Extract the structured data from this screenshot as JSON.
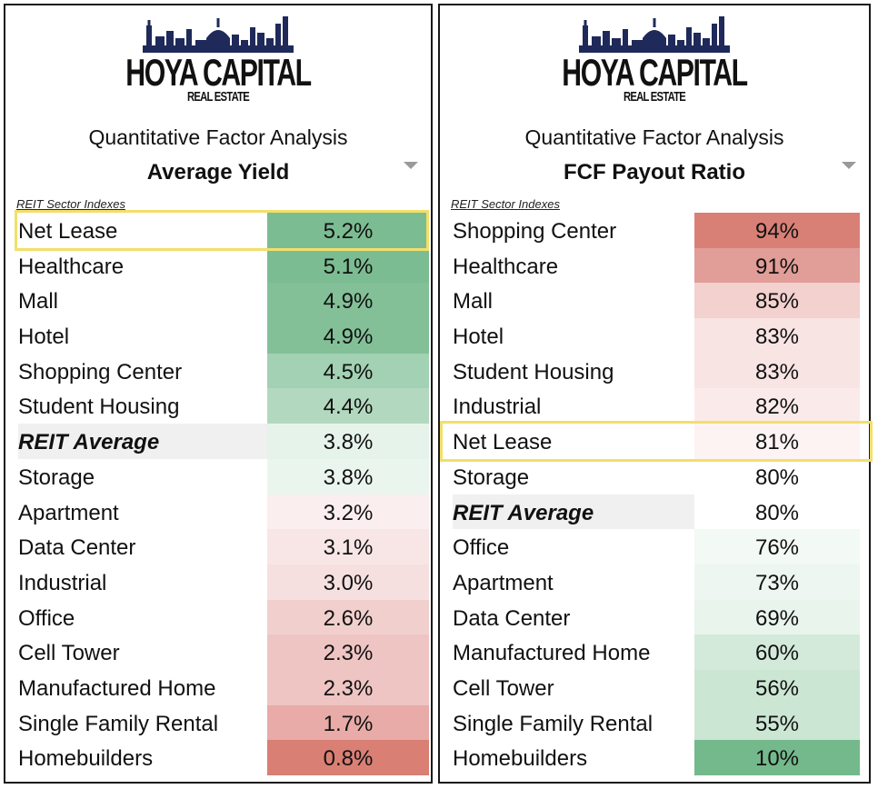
{
  "brand": {
    "name": "HOYA CAPITAL",
    "sub": "REAL ESTATE"
  },
  "chart_data": [
    {
      "type": "table",
      "subtitle": "Quantitative Factor Analysis",
      "title": "Average Yield",
      "caption": "REIT Sector Indexes",
      "rows": [
        {
          "label": "Net Lease",
          "value": "5.2%",
          "num": 5.2,
          "highlight": true
        },
        {
          "label": "Healthcare",
          "value": "5.1%",
          "num": 5.1
        },
        {
          "label": "Mall",
          "value": "4.9%",
          "num": 4.9
        },
        {
          "label": "Hotel",
          "value": "4.9%",
          "num": 4.9
        },
        {
          "label": "Shopping Center",
          "value": "4.5%",
          "num": 4.5
        },
        {
          "label": "Student Housing",
          "value": "4.4%",
          "num": 4.4
        },
        {
          "label": "REIT Average",
          "value": "3.8%",
          "num": 3.8,
          "average": true
        },
        {
          "label": "Storage",
          "value": "3.8%",
          "num": 3.8
        },
        {
          "label": "Apartment",
          "value": "3.2%",
          "num": 3.2
        },
        {
          "label": "Data Center",
          "value": "3.1%",
          "num": 3.1
        },
        {
          "label": "Industrial",
          "value": "3.0%",
          "num": 3.0
        },
        {
          "label": "Office",
          "value": "2.6%",
          "num": 2.6
        },
        {
          "label": "Cell Tower",
          "value": "2.3%",
          "num": 2.3
        },
        {
          "label": "Manufactured Home",
          "value": "2.3%",
          "num": 2.3
        },
        {
          "label": "Single Family Rental",
          "value": "1.7%",
          "num": 1.7
        },
        {
          "label": "Homebuilders",
          "value": "0.8%",
          "num": 0.8
        }
      ],
      "colors": {
        "Net Lease": "#7cbc92",
        "Healthcare": "#7cbc92",
        "Mall": "#83c098",
        "Hotel": "#83c098",
        "Shopping Center": "#a2d1b3",
        "Student Housing": "#b2d9bf",
        "REIT Average": "#e6f3ea",
        "Storage": "#eaf5ed",
        "Apartment": "#fbeeee",
        "Data Center": "#f8e6e6",
        "Industrial": "#f6e0df",
        "Office": "#f1cfcd",
        "Cell Tower": "#eec5c3",
        "Manufactured Home": "#eec5c3",
        "Single Family Rental": "#e8aba7",
        "Homebuilders": "#d97f74"
      }
    },
    {
      "type": "table",
      "subtitle": "Quantitative Factor Analysis",
      "title": "FCF Payout Ratio",
      "caption": "REIT Sector Indexes",
      "rows": [
        {
          "label": "Shopping Center",
          "value": "94%",
          "num": 94
        },
        {
          "label": "Healthcare",
          "value": "91%",
          "num": 91
        },
        {
          "label": "Mall",
          "value": "85%",
          "num": 85
        },
        {
          "label": "Hotel",
          "value": "83%",
          "num": 83
        },
        {
          "label": "Student Housing",
          "value": "83%",
          "num": 83
        },
        {
          "label": "Industrial",
          "value": "82%",
          "num": 82
        },
        {
          "label": "Net Lease",
          "value": "81%",
          "num": 81,
          "highlight": true
        },
        {
          "label": "Storage",
          "value": "80%",
          "num": 80
        },
        {
          "label": "REIT Average",
          "value": "80%",
          "num": 80,
          "average": true
        },
        {
          "label": "Office",
          "value": "76%",
          "num": 76
        },
        {
          "label": "Apartment",
          "value": "73%",
          "num": 73
        },
        {
          "label": "Data Center",
          "value": "69%",
          "num": 69
        },
        {
          "label": "Manufactured Home",
          "value": "60%",
          "num": 60
        },
        {
          "label": "Cell Tower",
          "value": "56%",
          "num": 56
        },
        {
          "label": "Single Family Rental",
          "value": "55%",
          "num": 55
        },
        {
          "label": "Homebuilders",
          "value": "10%",
          "num": 10
        }
      ],
      "colors": {
        "Shopping Center": "#d98076",
        "Healthcare": "#e19d97",
        "Mall": "#f2d1cf",
        "Hotel": "#f8e4e3",
        "Student Housing": "#f8e4e3",
        "Industrial": "#faebea",
        "Net Lease": "#fdf3f2",
        "Storage": "#ffffff",
        "REIT Average": "#ffffff",
        "Office": "#f3f9f5",
        "Apartment": "#eef6f1",
        "Data Center": "#e9f4ec",
        "Manufactured Home": "#d3eadb",
        "Cell Tower": "#cce6d4",
        "Single Family Rental": "#cbe6d3",
        "Homebuilders": "#74b98b"
      }
    }
  ]
}
